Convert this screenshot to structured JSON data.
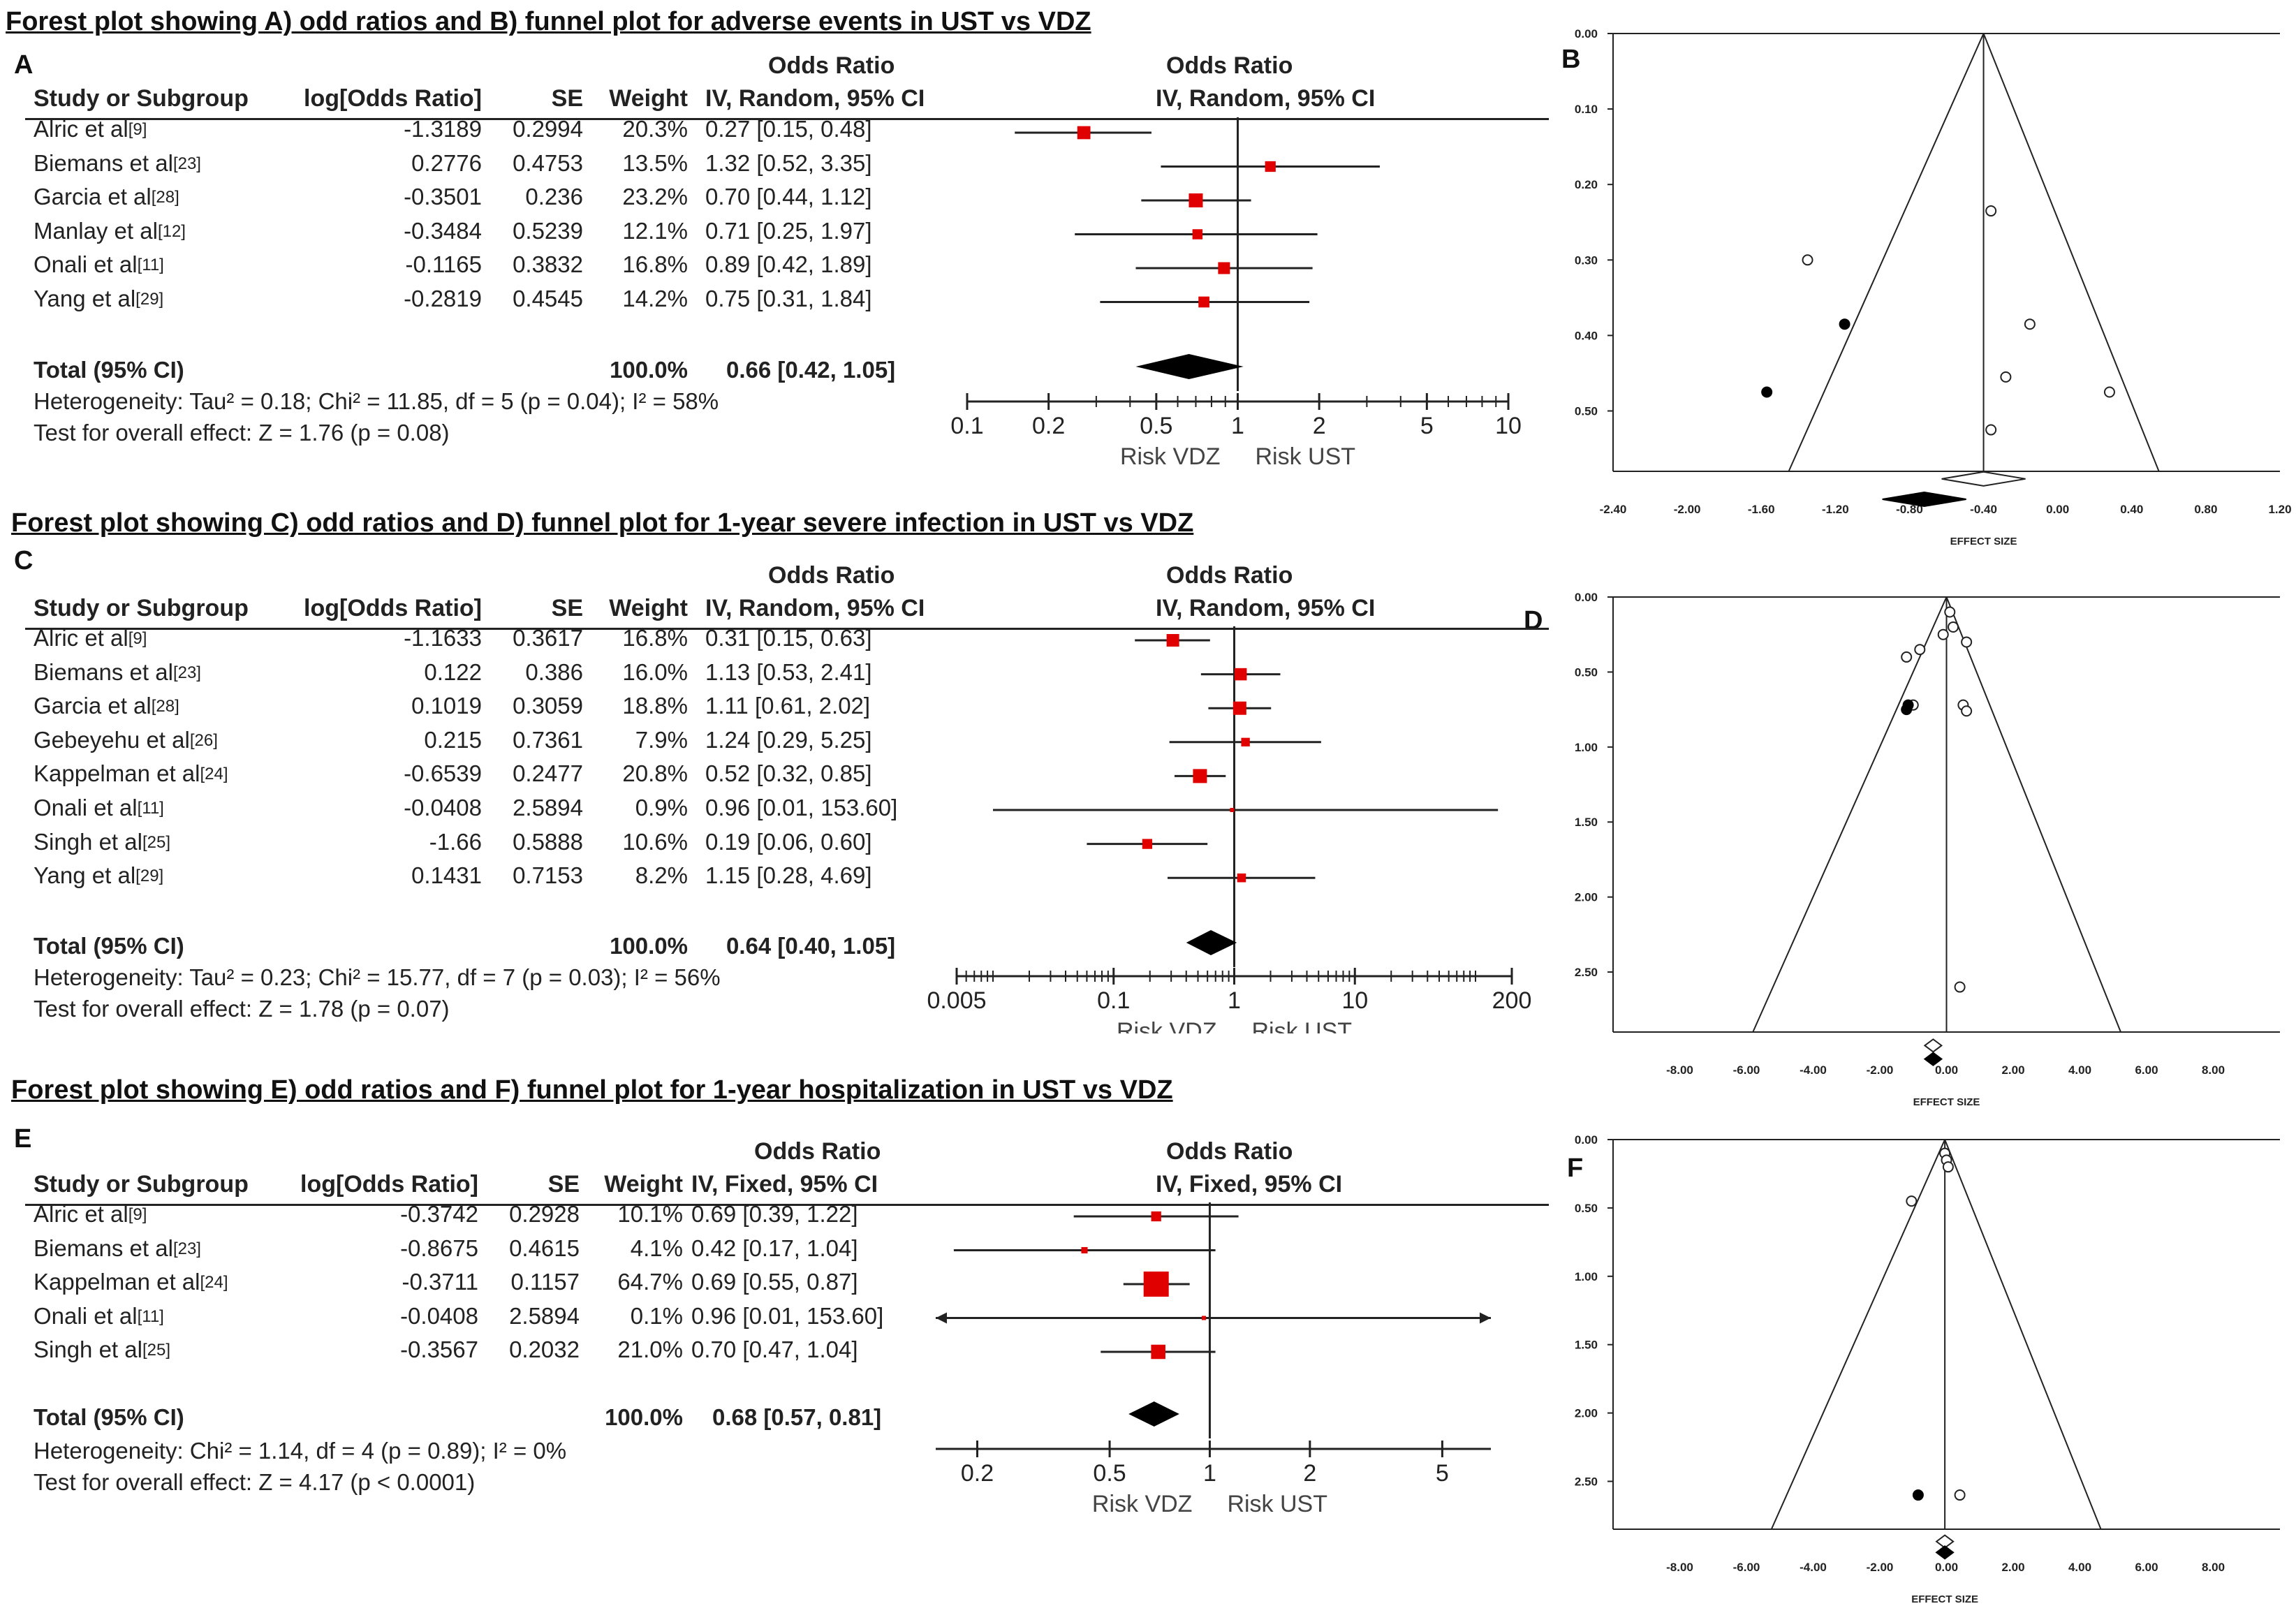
{
  "sections": [
    {
      "title": "Forest plot showing A) odd ratios and B) funnel plot for adverse events in UST vs VDZ",
      "forest_label": "A",
      "funnel_label": "B"
    },
    {
      "title": "Forest plot showing C) odd ratios and D) funnel plot for 1-year severe infection in UST vs VDZ",
      "forest_label": "C",
      "funnel_label": "D"
    },
    {
      "title": "Forest plot showing E) odd ratios and F) funnel plot for 1-year hospitalization in UST vs VDZ",
      "forest_label": "E",
      "funnel_label": "F"
    }
  ],
  "chart_data": [
    {
      "type": "forest",
      "id": "A",
      "method": "IV, Random, 95% CI",
      "columns": {
        "study": "Study or Subgroup",
        "log": "log[Odds Ratio]",
        "se": "SE",
        "weight": "Weight",
        "or_title": "Odds Ratio",
        "plot_title": "Odds Ratio"
      },
      "studies": [
        {
          "name": "Alric et al",
          "ref": "[9]",
          "log": "-1.3189",
          "se": "0.2994",
          "weight": "20.3%",
          "or_text": "0.27 [0.15, 0.48]",
          "or": 0.27,
          "lo": 0.15,
          "hi": 0.48
        },
        {
          "name": "Biemans et al",
          "ref": "[23]",
          "log": "0.2776",
          "se": "0.4753",
          "weight": "13.5%",
          "or_text": "1.32 [0.52, 3.35]",
          "or": 1.32,
          "lo": 0.52,
          "hi": 3.35
        },
        {
          "name": "Garcia et al",
          "ref": "[28]",
          "log": "-0.3501",
          "se": "0.236",
          "weight": "23.2%",
          "or_text": "0.70 [0.44, 1.12]",
          "or": 0.7,
          "lo": 0.44,
          "hi": 1.12
        },
        {
          "name": "Manlay et al",
          "ref": "[12]",
          "log": "-0.3484",
          "se": "0.5239",
          "weight": "12.1%",
          "or_text": "0.71 [0.25, 1.97]",
          "or": 0.71,
          "lo": 0.25,
          "hi": 1.97
        },
        {
          "name": "Onali et al",
          "ref": "[11]",
          "log": "-0.1165",
          "se": "0.3832",
          "weight": "16.8%",
          "or_text": "0.89 [0.42, 1.89]",
          "or": 0.89,
          "lo": 0.42,
          "hi": 1.89
        },
        {
          "name": "Yang et al",
          "ref": "[29]",
          "log": "-0.2819",
          "se": "0.4545",
          "weight": "14.2%",
          "or_text": "0.75 [0.31, 1.84]",
          "or": 0.75,
          "lo": 0.31,
          "hi": 1.84
        }
      ],
      "total": {
        "label": "Total (95% CI)",
        "weight": "100.0%",
        "or_text": "0.66 [0.42, 1.05]",
        "or": 0.66,
        "lo": 0.42,
        "hi": 1.05
      },
      "heterogeneity": "Heterogeneity: Tau² = 0.18; Chi² = 11.85, df = 5 (p = 0.04); I² = 58%",
      "overall": "Test for overall effect: Z = 1.76 (p = 0.08)",
      "axis": {
        "min": 0.1,
        "max": 10,
        "ticks": [
          "0.1",
          "0.2",
          "0.5",
          "1",
          "2",
          "5",
          "10"
        ]
      },
      "favours_left": "Risk VDZ",
      "favours_right": "Risk UST"
    },
    {
      "type": "forest",
      "id": "C",
      "method": "IV, Random, 95% CI",
      "columns": {
        "study": "Study or Subgroup",
        "log": "log[Odds Ratio]",
        "se": "SE",
        "weight": "Weight",
        "or_title": "Odds Ratio",
        "plot_title": "Odds Ratio"
      },
      "studies": [
        {
          "name": "Alric et al",
          "ref": "[9]",
          "log": "-1.1633",
          "se": "0.3617",
          "weight": "16.8%",
          "or_text": "0.31 [0.15, 0.63]",
          "or": 0.31,
          "lo": 0.15,
          "hi": 0.63
        },
        {
          "name": "Biemans et al",
          "ref": "[23]",
          "log": "0.122",
          "se": "0.386",
          "weight": "16.0%",
          "or_text": "1.13 [0.53, 2.41]",
          "or": 1.13,
          "lo": 0.53,
          "hi": 2.41
        },
        {
          "name": "Garcia et al",
          "ref": "[28]",
          "log": "0.1019",
          "se": "0.3059",
          "weight": "18.8%",
          "or_text": "1.11 [0.61, 2.02]",
          "or": 1.11,
          "lo": 0.61,
          "hi": 2.02
        },
        {
          "name": "Gebeyehu et al",
          "ref": "[26]",
          "log": "0.215",
          "se": "0.7361",
          "weight": "7.9%",
          "or_text": "1.24 [0.29, 5.25]",
          "or": 1.24,
          "lo": 0.29,
          "hi": 5.25
        },
        {
          "name": "Kappelman et al",
          "ref": "[24]",
          "log": "-0.6539",
          "se": "0.2477",
          "weight": "20.8%",
          "or_text": "0.52 [0.32, 0.85]",
          "or": 0.52,
          "lo": 0.32,
          "hi": 0.85
        },
        {
          "name": "Onali et al",
          "ref": "[11]",
          "log": "-0.0408",
          "se": "2.5894",
          "weight": "0.9%",
          "or_text": "0.96 [0.01, 153.60]",
          "or": 0.96,
          "lo": 0.01,
          "hi": 153.6
        },
        {
          "name": "Singh et al",
          "ref": "[25]",
          "log": "-1.66",
          "se": "0.5888",
          "weight": "10.6%",
          "or_text": "0.19 [0.06, 0.60]",
          "or": 0.19,
          "lo": 0.06,
          "hi": 0.6
        },
        {
          "name": "Yang et al",
          "ref": "[29]",
          "log": "0.1431",
          "se": "0.7153",
          "weight": "8.2%",
          "or_text": "1.15 [0.28, 4.69]",
          "or": 1.15,
          "lo": 0.28,
          "hi": 4.69
        }
      ],
      "total": {
        "label": "Total (95% CI)",
        "weight": "100.0%",
        "or_text": "0.64 [0.40, 1.05]",
        "or": 0.64,
        "lo": 0.4,
        "hi": 1.05
      },
      "heterogeneity": "Heterogeneity: Tau² = 0.23; Chi² = 15.77, df = 7 (p = 0.03); I² = 56%",
      "overall": "Test for overall effect: Z = 1.78 (p = 0.07)",
      "axis": {
        "min": 0.005,
        "max": 200,
        "ticks": [
          "0.005",
          "0.1",
          "1",
          "10",
          "200"
        ]
      },
      "favours_left": "Risk VDZ",
      "favours_right": "Risk UST"
    },
    {
      "type": "forest",
      "id": "E",
      "method": "IV, Fixed, 95% CI",
      "columns": {
        "study": "Study or Subgroup",
        "log": "log[Odds Ratio]",
        "se": "SE",
        "weight": "Weight",
        "or_title": "Odds Ratio",
        "plot_title": "Odds Ratio"
      },
      "studies": [
        {
          "name": "Alric et al",
          "ref": "[9]",
          "log": "-0.3742",
          "se": "0.2928",
          "weight": "10.1%",
          "or_text": "0.69 [0.39, 1.22]",
          "or": 0.69,
          "lo": 0.39,
          "hi": 1.22
        },
        {
          "name": "Biemans et al",
          "ref": "[23]",
          "log": "-0.8675",
          "se": "0.4615",
          "weight": "4.1%",
          "or_text": "0.42 [0.17, 1.04]",
          "or": 0.42,
          "lo": 0.17,
          "hi": 1.04
        },
        {
          "name": "Kappelman et al",
          "ref": "[24]",
          "log": "-0.3711",
          "se": "0.1157",
          "weight": "64.7%",
          "or_text": "0.69 [0.55, 0.87]",
          "or": 0.69,
          "lo": 0.55,
          "hi": 0.87
        },
        {
          "name": "Onali et al",
          "ref": "[11]",
          "log": "-0.0408",
          "se": "2.5894",
          "weight": "0.1%",
          "or_text": "0.96 [0.01, 153.60]",
          "or": 0.96,
          "lo": 0.01,
          "hi": 153.6
        },
        {
          "name": "Singh et al",
          "ref": "[25]",
          "log": "-0.3567",
          "se": "0.2032",
          "weight": "21.0%",
          "or_text": "0.70 [0.47, 1.04]",
          "or": 0.7,
          "lo": 0.47,
          "hi": 1.04
        }
      ],
      "total": {
        "label": "Total (95% CI)",
        "weight": "100.0%",
        "or_text": "0.68 [0.57, 0.81]",
        "or": 0.68,
        "lo": 0.57,
        "hi": 0.81
      },
      "heterogeneity": "Heterogeneity: Chi² = 1.14, df = 4 (p = 0.89); I² = 0%",
      "overall": "Test for overall effect: Z = 4.17 (p < 0.0001)",
      "axis": {
        "min": 0.15,
        "max": 7,
        "ticks": [
          "0.2",
          "0.5",
          "1",
          "2",
          "5"
        ]
      },
      "favours_left": "Risk VDZ",
      "favours_right": "Risk UST"
    },
    {
      "type": "funnel",
      "id": "B",
      "xlabel": "EFFECT SIZE",
      "xlim": [
        -2.4,
        1.2
      ],
      "ylim": [
        0,
        0.58
      ],
      "xticks": [
        "-2.40",
        "-2.00",
        "-1.60",
        "-1.20",
        "-0.80",
        "-0.40",
        "0.00",
        "0.40",
        "0.80",
        "1.20"
      ],
      "yticks": [
        "0.00",
        "0.10",
        "0.20",
        "0.30",
        "0.40",
        "0.50"
      ],
      "center": -0.4,
      "open_points": [
        [
          -0.36,
          0.235
        ],
        [
          -1.35,
          0.3
        ],
        [
          -0.15,
          0.385
        ],
        [
          -0.28,
          0.455
        ],
        [
          0.28,
          0.475
        ],
        [
          -0.36,
          0.525
        ]
      ],
      "filled_points": [
        [
          -1.15,
          0.385
        ],
        [
          -1.57,
          0.475
        ]
      ],
      "open_diamond": [
        -0.4,
        0.59
      ],
      "filled_diamond": [
        -0.72,
        0.617
      ]
    },
    {
      "type": "funnel",
      "id": "D",
      "xlabel": "EFFECT SIZE",
      "xlim": [
        -10,
        10
      ],
      "ylim": [
        0,
        2.9
      ],
      "xticks": [
        "-8.00",
        "-6.00",
        "-4.00",
        "-2.00",
        "0.00",
        "2.00",
        "4.00",
        "6.00",
        "8.00"
      ],
      "yticks": [
        "0.00",
        "0.50",
        "1.00",
        "1.50",
        "2.00",
        "2.50"
      ],
      "center": 0,
      "open_points": [
        [
          0.1,
          0.1
        ],
        [
          0.2,
          0.2
        ],
        [
          -0.1,
          0.25
        ],
        [
          0.6,
          0.3
        ],
        [
          -0.8,
          0.35
        ],
        [
          -1.2,
          0.4
        ],
        [
          -1.0,
          0.72
        ],
        [
          0.5,
          0.72
        ],
        [
          0.6,
          0.76
        ],
        [
          0.4,
          2.6
        ]
      ],
      "filled_points": [
        [
          -1.15,
          0.72
        ],
        [
          -1.2,
          0.75
        ]
      ],
      "open_diamond": [
        -0.4,
        2.99
      ],
      "filled_diamond": [
        -0.4,
        3.08
      ]
    },
    {
      "type": "funnel",
      "id": "F",
      "xlabel": "EFFECT SIZE",
      "xlim": [
        -10,
        10
      ],
      "ylim": [
        0,
        2.85
      ],
      "xticks": [
        "-8.00",
        "-6.00",
        "-4.00",
        "-2.00",
        "0.00",
        "2.00",
        "4.00",
        "6.00",
        "8.00"
      ],
      "yticks": [
        "0.00",
        "0.50",
        "1.00",
        "1.50",
        "2.00",
        "2.50"
      ],
      "center": -0.05,
      "open_points": [
        [
          -0.05,
          0.1
        ],
        [
          0,
          0.15
        ],
        [
          0.05,
          0.2
        ],
        [
          -1.05,
          0.45
        ],
        [
          0.4,
          2.6
        ]
      ],
      "filled_points": [
        [
          -0.85,
          2.6
        ]
      ],
      "open_diamond": [
        -0.05,
        2.94
      ],
      "filled_diamond": [
        -0.05,
        3.02
      ]
    }
  ]
}
